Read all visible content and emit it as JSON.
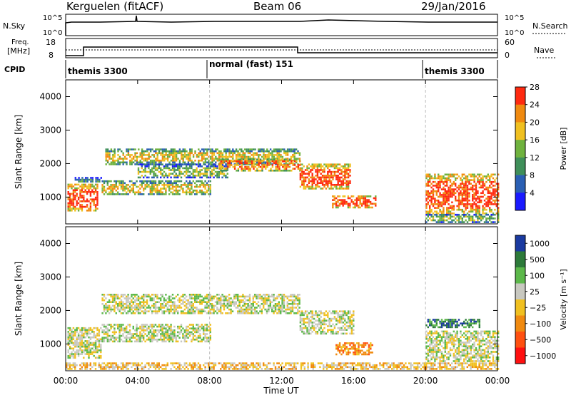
{
  "header": {
    "station": "Kerguelen (fitACF)",
    "beam": "Beam 06",
    "date": "29/Jan/2016"
  },
  "noise_panel": {
    "left_label": "N.Sky",
    "right_label": "N.Search",
    "left_ticks": [
      "10^5",
      "10^0"
    ],
    "right_ticks": [
      "10^5",
      "10^0"
    ]
  },
  "freq_panel": {
    "left_label_1": "Freq.",
    "left_label_2": "[MHz]",
    "right_label": "Nave",
    "left_ticks": [
      "18",
      "8"
    ],
    "right_ticks": [
      "60",
      "0"
    ]
  },
  "cpid": {
    "label": "CPID",
    "segments": [
      {
        "start_hour": 0,
        "name": "themis 3300"
      },
      {
        "start_hour": 8,
        "name": "normal (fast) 151"
      },
      {
        "start_hour": 20,
        "name": "themis 3300"
      }
    ]
  },
  "chart_data": [
    {
      "type": "heatmap",
      "title": "Power",
      "ylabel": "Slant Range [km]",
      "xlabel": "Time UT",
      "xlim_hours": [
        0,
        24
      ],
      "ylim": [
        200,
        4500
      ],
      "yticks": [
        "1000",
        "2000",
        "3000",
        "4000"
      ],
      "xticks": [
        "00:00",
        "04:00",
        "08:00",
        "12:00",
        "16:00",
        "20:00",
        "00:00"
      ],
      "colorbar_label": "Power [dB]",
      "colorbar_ticks": [
        "4",
        "8",
        "12",
        "16",
        "20",
        "24",
        "28"
      ],
      "colors": [
        "#1a1aff",
        "#2a5fb4",
        "#3f8f5a",
        "#6fb23e",
        "#f0c020",
        "#f08a10",
        "#ff2a10"
      ],
      "regions": [
        {
          "t0": 0.1,
          "t1": 1.8,
          "r0": 600,
          "r1": 1400,
          "level": 6
        },
        {
          "t0": 0.5,
          "t1": 2.0,
          "r0": 1450,
          "r1": 1600,
          "level": 2
        },
        {
          "t0": 2.0,
          "t1": 8.0,
          "r0": 1100,
          "r1": 1500,
          "level": 4
        },
        {
          "t0": 2.2,
          "t1": 13.0,
          "r0": 2000,
          "r1": 2450,
          "level": 4
        },
        {
          "t0": 4.0,
          "t1": 9.0,
          "r0": 1600,
          "r1": 2000,
          "level": 3
        },
        {
          "t0": 8.5,
          "t1": 13.0,
          "r0": 1800,
          "r1": 2150,
          "level": 5
        },
        {
          "t0": 13.0,
          "t1": 15.8,
          "r0": 1250,
          "r1": 2000,
          "level": 6
        },
        {
          "t0": 14.8,
          "t1": 17.2,
          "r0": 700,
          "r1": 1050,
          "level": 6
        },
        {
          "t0": 20.0,
          "t1": 24.0,
          "r0": 500,
          "r1": 1700,
          "level": 6
        },
        {
          "t0": 20.0,
          "t1": 24.0,
          "r0": 250,
          "r1": 500,
          "level": 3
        }
      ]
    },
    {
      "type": "heatmap",
      "ylabel": "Slant Range [km]",
      "xlabel": "Time UT",
      "xlim_hours": [
        0,
        24
      ],
      "ylim": [
        200,
        4500
      ],
      "yticks": [
        "1000",
        "2000",
        "3000",
        "4000"
      ],
      "xticks": [
        "00:00",
        "04:00",
        "08:00",
        "12:00",
        "16:00",
        "20:00",
        "00:00"
      ],
      "colorbar_label": "Velocity [m s⁻¹]",
      "colorbar_ticks": [
        "1000",
        "500",
        "100",
        "25",
        "−25",
        "−100",
        "−500",
        "−1000"
      ],
      "colors": [
        "#1a3aa0",
        "#2d7a3a",
        "#5cb84a",
        "#c8c8c0",
        "#f0c020",
        "#f08a10",
        "#ff5010",
        "#ff1010"
      ],
      "regions": [
        {
          "t0": 0.1,
          "t1": 2.0,
          "r0": 600,
          "r1": 1500,
          "level": 3
        },
        {
          "t0": 2.0,
          "t1": 13.0,
          "r0": 1900,
          "r1": 2500,
          "level": 3
        },
        {
          "t0": 2.0,
          "t1": 8.0,
          "r0": 1100,
          "r1": 1600,
          "level": 3
        },
        {
          "t0": 13.0,
          "t1": 16.0,
          "r0": 1300,
          "r1": 2000,
          "level": 3
        },
        {
          "t0": 15.0,
          "t1": 17.0,
          "r0": 700,
          "r1": 1050,
          "level": 5
        },
        {
          "t0": 20.0,
          "t1": 24.0,
          "r0": 500,
          "r1": 1400,
          "level": 3
        },
        {
          "t0": 20.0,
          "t1": 23.0,
          "r0": 1500,
          "r1": 1750,
          "level": 1
        },
        {
          "t0": 0.0,
          "t1": 24.0,
          "r0": 250,
          "r1": 450,
          "level": 4
        }
      ]
    }
  ]
}
